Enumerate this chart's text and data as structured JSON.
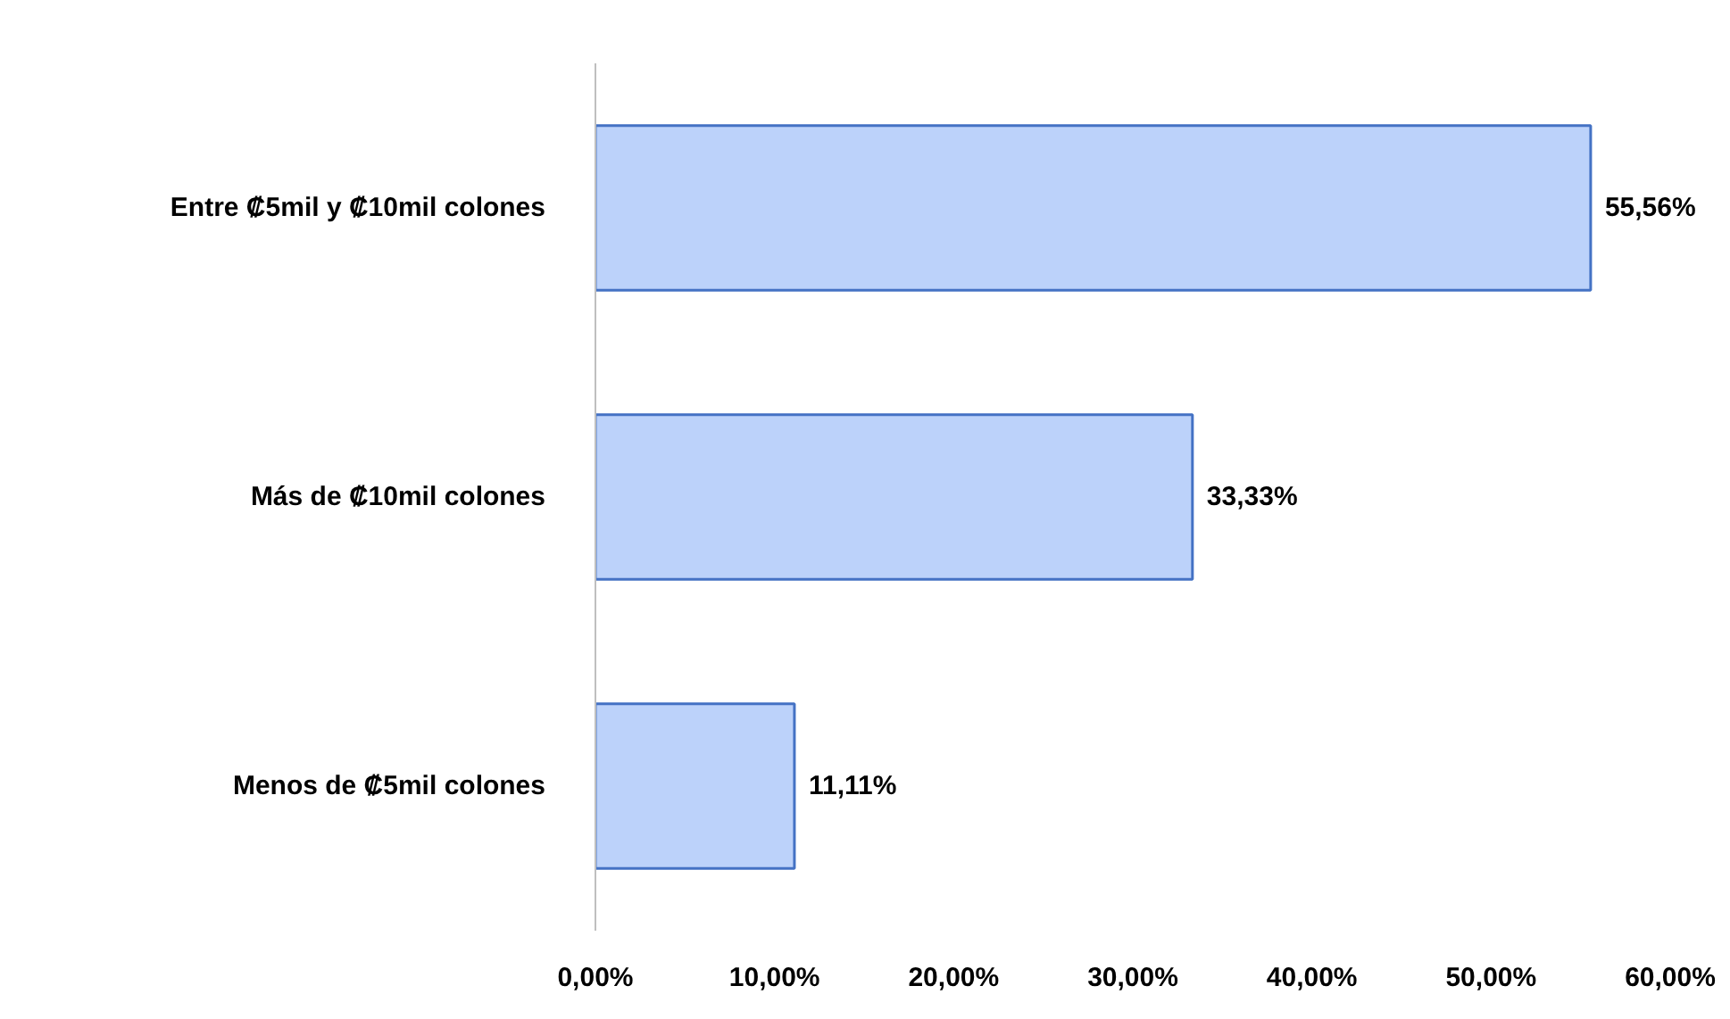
{
  "chart_data": {
    "type": "bar",
    "orientation": "horizontal",
    "categories": [
      "Entre ₡5mil y ₡10mil colones",
      "Más de ₡10mil colones",
      "Menos de ₡5mil colones"
    ],
    "values": [
      55.56,
      33.33,
      11.11
    ],
    "value_labels": [
      "55,56%",
      "33,33%",
      "11,11%"
    ],
    "color": "#bcd2fa",
    "xlim": [
      0,
      60
    ],
    "xticks": [
      {
        "value": 0,
        "label": "0,00%"
      },
      {
        "value": 10,
        "label": "10,00%"
      },
      {
        "value": 20,
        "label": "20,00%"
      },
      {
        "value": 30,
        "label": "30,00%"
      },
      {
        "value": 40,
        "label": "40,00%"
      },
      {
        "value": 50,
        "label": "50,00%"
      },
      {
        "value": 60,
        "label": "60,00%"
      }
    ],
    "grid": false
  }
}
